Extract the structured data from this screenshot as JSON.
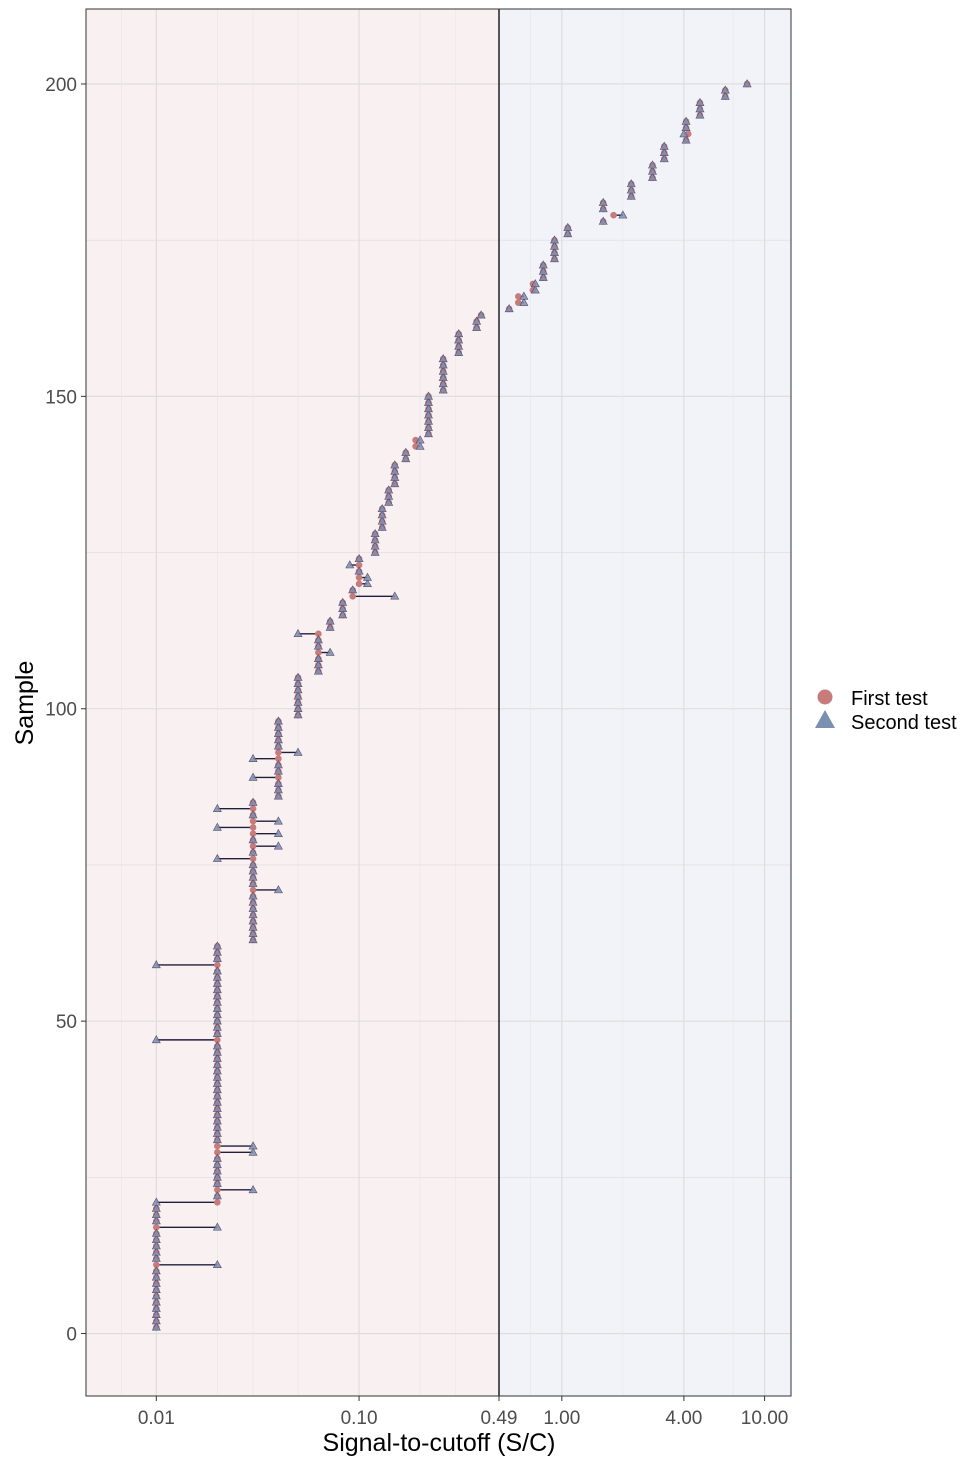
{
  "chart_data": {
    "type": "scatter",
    "xlabel": "Signal-to-cutoff (S/C)",
    "ylabel": "Sample",
    "x_scale": "log10",
    "xlim": [
      0.0045,
      13.5
    ],
    "ylim": [
      -10,
      212
    ],
    "x_ticks": [
      0.01,
      0.1,
      0.49,
      1.0,
      4.0,
      10.0
    ],
    "x_tick_labels": [
      "0.01",
      "0.10",
      "0.49",
      "1.00",
      "4.00",
      "10.00"
    ],
    "y_ticks": [
      0,
      50,
      100,
      150,
      200
    ],
    "y_tick_labels": [
      "0",
      "50",
      "100",
      "150",
      "200"
    ],
    "cutoff": 0.49,
    "grid": true,
    "region_colors": {
      "below_cutoff": "#f9f0f1",
      "above_cutoff": "#f2f3f8"
    },
    "legend": {
      "position": "right",
      "entries": [
        {
          "label": "First test",
          "shape": "circle",
          "color": "#c77b7b"
        },
        {
          "label": "Second test",
          "shape": "triangle",
          "color": "#7b8fb0"
        }
      ]
    },
    "sample_ranges": [
      {
        "from": 1,
        "to": 20,
        "first": 0.01,
        "second": 0.01
      },
      {
        "from": 21,
        "to": 62,
        "first": 0.02,
        "second": 0.02
      },
      {
        "from": 63,
        "to": 85,
        "first": 0.03,
        "second": 0.03
      },
      {
        "from": 86,
        "to": 98,
        "first": 0.04,
        "second": 0.04
      },
      {
        "from": 99,
        "to": 105,
        "first": 0.05,
        "second": 0.05
      },
      {
        "from": 106,
        "to": 111,
        "first": 0.063,
        "second": 0.063
      },
      {
        "from": 113,
        "to": 114,
        "first": 0.072,
        "second": 0.072
      },
      {
        "from": 115,
        "to": 117,
        "first": 0.083,
        "second": 0.083
      },
      {
        "from": 119,
        "to": 119,
        "first": 0.093,
        "second": 0.093
      },
      {
        "from": 120,
        "to": 124,
        "first": 0.1,
        "second": 0.1
      },
      {
        "from": 125,
        "to": 128,
        "first": 0.12,
        "second": 0.12
      },
      {
        "from": 129,
        "to": 132,
        "first": 0.13,
        "second": 0.13
      },
      {
        "from": 133,
        "to": 135,
        "first": 0.14,
        "second": 0.14
      },
      {
        "from": 136,
        "to": 139,
        "first": 0.15,
        "second": 0.15
      },
      {
        "from": 140,
        "to": 141,
        "first": 0.17,
        "second": 0.17
      },
      {
        "from": 142,
        "to": 143,
        "first": 0.19,
        "second": 0.2
      },
      {
        "from": 144,
        "to": 150,
        "first": 0.22,
        "second": 0.22
      },
      {
        "from": 151,
        "to": 156,
        "first": 0.26,
        "second": 0.26
      },
      {
        "from": 157,
        "to": 160,
        "first": 0.31,
        "second": 0.31
      },
      {
        "from": 161,
        "to": 162,
        "first": 0.38,
        "second": 0.38
      },
      {
        "from": 163,
        "to": 163,
        "first": 0.4,
        "second": 0.4
      },
      {
        "from": 164,
        "to": 164,
        "first": 0.55,
        "second": 0.55
      },
      {
        "from": 165,
        "to": 166,
        "first": 0.61,
        "second": 0.65
      },
      {
        "from": 167,
        "to": 168,
        "first": 0.72,
        "second": 0.74
      },
      {
        "from": 169,
        "to": 171,
        "first": 0.81,
        "second": 0.81
      },
      {
        "from": 172,
        "to": 175,
        "first": 0.92,
        "second": 0.92
      },
      {
        "from": 176,
        "to": 177,
        "first": 1.07,
        "second": 1.07
      },
      {
        "from": 178,
        "to": 181,
        "first": 1.6,
        "second": 1.6
      },
      {
        "from": 182,
        "to": 184,
        "first": 2.2,
        "second": 2.2
      },
      {
        "from": 185,
        "to": 187,
        "first": 2.8,
        "second": 2.8
      },
      {
        "from": 188,
        "to": 190,
        "first": 3.2,
        "second": 3.2
      },
      {
        "from": 191,
        "to": 194,
        "first": 4.1,
        "second": 4.1
      },
      {
        "from": 195,
        "to": 197,
        "first": 4.8,
        "second": 4.8
      },
      {
        "from": 198,
        "to": 199,
        "first": 6.4,
        "second": 6.4
      },
      {
        "from": 200,
        "to": 200,
        "first": 8.2,
        "second": 8.2
      }
    ],
    "discordant_samples": [
      {
        "sample": 11,
        "first": 0.01,
        "second": 0.02
      },
      {
        "sample": 17,
        "first": 0.01,
        "second": 0.02
      },
      {
        "sample": 21,
        "first": 0.02,
        "second": 0.01
      },
      {
        "sample": 23,
        "first": 0.02,
        "second": 0.03
      },
      {
        "sample": 29,
        "first": 0.02,
        "second": 0.03
      },
      {
        "sample": 30,
        "first": 0.02,
        "second": 0.03
      },
      {
        "sample": 47,
        "first": 0.02,
        "second": 0.01
      },
      {
        "sample": 59,
        "first": 0.02,
        "second": 0.01
      },
      {
        "sample": 71,
        "first": 0.03,
        "second": 0.04
      },
      {
        "sample": 76,
        "first": 0.03,
        "second": 0.02
      },
      {
        "sample": 78,
        "first": 0.03,
        "second": 0.04
      },
      {
        "sample": 80,
        "first": 0.03,
        "second": 0.04
      },
      {
        "sample": 81,
        "first": 0.03,
        "second": 0.02
      },
      {
        "sample": 82,
        "first": 0.03,
        "second": 0.04
      },
      {
        "sample": 84,
        "first": 0.03,
        "second": 0.02
      },
      {
        "sample": 89,
        "first": 0.04,
        "second": 0.03
      },
      {
        "sample": 92,
        "first": 0.04,
        "second": 0.03
      },
      {
        "sample": 93,
        "first": 0.04,
        "second": 0.05
      },
      {
        "sample": 109,
        "first": 0.063,
        "second": 0.072
      },
      {
        "sample": 112,
        "first": 0.063,
        "second": 0.05
      },
      {
        "sample": 118,
        "first": 0.093,
        "second": 0.15
      },
      {
        "sample": 120,
        "first": 0.1,
        "second": 0.11
      },
      {
        "sample": 121,
        "first": 0.1,
        "second": 0.11
      },
      {
        "sample": 123,
        "first": 0.1,
        "second": 0.09
      },
      {
        "sample": 179,
        "first": 1.8,
        "second": 2.0
      },
      {
        "sample": 192,
        "first": 4.2,
        "second": 4.0
      }
    ]
  }
}
